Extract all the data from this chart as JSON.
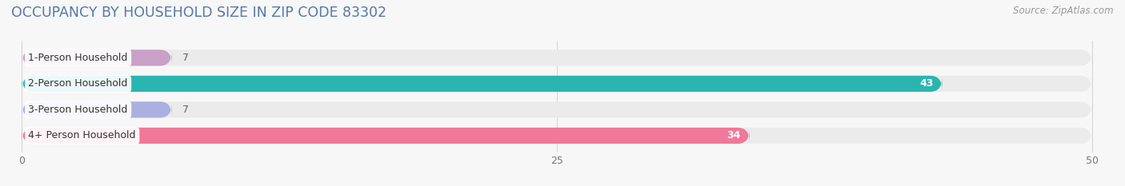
{
  "title": "OCCUPANCY BY HOUSEHOLD SIZE IN ZIP CODE 83302",
  "source": "Source: ZipAtlas.com",
  "categories": [
    "1-Person Household",
    "2-Person Household",
    "3-Person Household",
    "4+ Person Household"
  ],
  "values": [
    7,
    43,
    7,
    34
  ],
  "bar_colors": [
    "#c9a0c8",
    "#2ab5b0",
    "#aab0e0",
    "#f07898"
  ],
  "bg_color_bars": [
    "#ede8ef",
    "#e0efef",
    "#e8eaf5",
    "#f8e0e8"
  ],
  "label_inside": [
    false,
    true,
    false,
    true
  ],
  "xlim_min": 0,
  "xlim_max": 50,
  "xticks": [
    0,
    25,
    50
  ],
  "title_color": "#5578a8",
  "title_fontsize": 12.5,
  "source_fontsize": 8.5,
  "bar_height": 0.62,
  "chart_bg_color": "#f7f7f7",
  "bar_bg_color": "#ebebeb",
  "grid_color": "#d5d5d5",
  "value_label_inside_color": "#ffffff",
  "value_label_outside_color": "#666666",
  "category_label_fontsize": 9,
  "value_label_fontsize": 9
}
